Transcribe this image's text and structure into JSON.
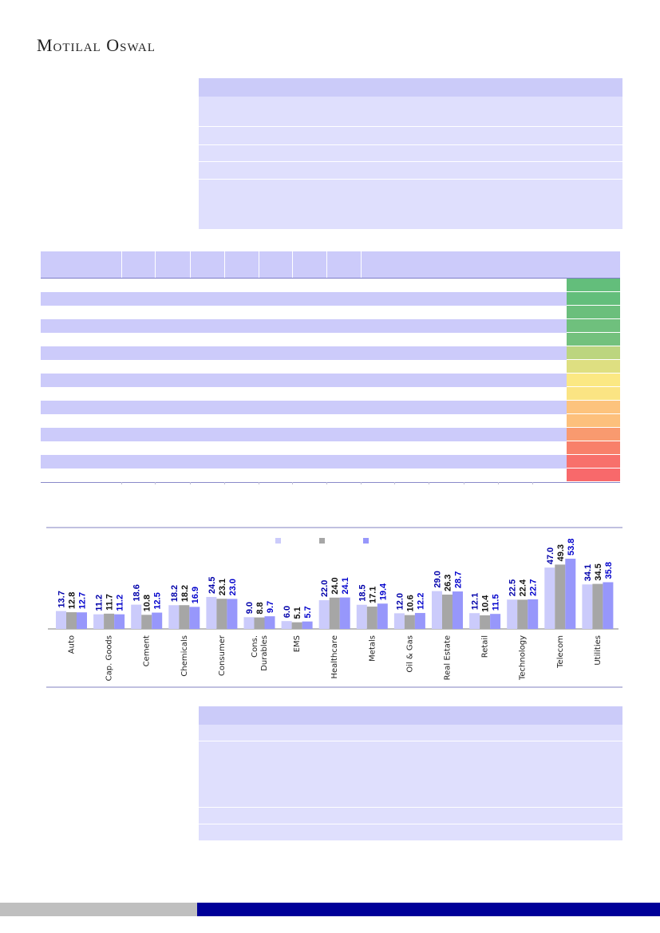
{
  "brand": {
    "name": "Motilal Oswal"
  },
  "colors": {
    "series": [
      "#cbcbfb",
      "#a6a6a6",
      "#9797fb"
    ],
    "label_colors": [
      "#0000aa",
      "#111111",
      "#0000cc"
    ],
    "heat": [
      "#63be7b",
      "#63be7b",
      "#6bbf7c",
      "#6fc07d",
      "#73c17d",
      "#bcd57f",
      "#dedf81",
      "#fbe883",
      "#fbe483",
      "#fdc37d",
      "#fdc07c",
      "#f99a6f",
      "#f8806a",
      "#f8706b",
      "#f8696b"
    ]
  },
  "chart_data": {
    "type": "bar",
    "categories": [
      "Auto",
      "Cap. Goods",
      "Cement",
      "Chemicals",
      "Consumer",
      "Cons. Durables",
      "EMS",
      "Healthcare",
      "Metals",
      "Oil & Gas",
      "Real Estate",
      "Retail",
      "Technology",
      "Telecom",
      "Utilities"
    ],
    "series": [
      {
        "values": [
          13.7,
          11.2,
          18.6,
          18.2,
          24.5,
          9.0,
          6.0,
          22.0,
          18.5,
          12.0,
          29.0,
          12.1,
          22.5,
          47.0,
          34.1
        ]
      },
      {
        "values": [
          12.8,
          11.7,
          10.8,
          18.2,
          23.1,
          8.8,
          5.1,
          24.0,
          17.1,
          10.6,
          26.3,
          10.4,
          22.4,
          49.3,
          34.5
        ]
      },
      {
        "values": [
          12.7,
          11.2,
          12.5,
          16.9,
          23.0,
          9.7,
          5.7,
          24.1,
          19.4,
          12.2,
          28.7,
          11.5,
          22.7,
          53.8,
          35.8
        ]
      }
    ],
    "legend": "top-center",
    "grid": false
  }
}
